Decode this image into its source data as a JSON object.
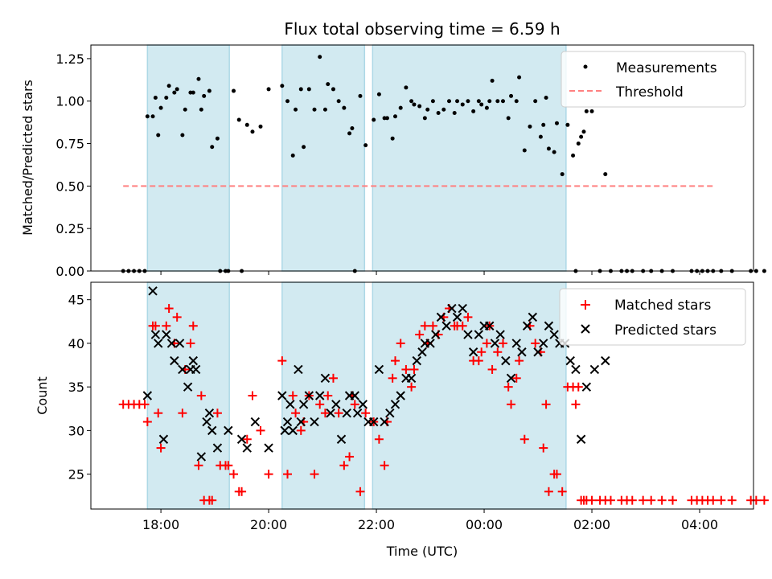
{
  "title": "Flux total observing time = 6.59 h",
  "colors": {
    "band": "#add8e6",
    "measurements": "#000000",
    "threshold": "#ff8080",
    "matched": "#ff0000",
    "predicted": "#000000"
  },
  "x_axis": {
    "label": "Time (UTC)",
    "unit": "hours since 00:00 of first night",
    "range": [
      16.7,
      29.0
    ],
    "ticks": [
      {
        "value": 18,
        "label": "18:00"
      },
      {
        "value": 20,
        "label": "20:00"
      },
      {
        "value": 22,
        "label": "22:00"
      },
      {
        "value": 24,
        "label": "00:00"
      },
      {
        "value": 26,
        "label": "02:00"
      },
      {
        "value": 28,
        "label": "04:00"
      }
    ]
  },
  "chart_data": [
    {
      "type": "scatter",
      "panel": "top",
      "ylabel": "Matched/Predicted stars",
      "ylim": [
        0,
        1.33
      ],
      "yticks": [
        "0.00",
        "0.25",
        "0.50",
        "0.75",
        "1.00",
        "1.25"
      ],
      "legend": {
        "position": "top-right",
        "entries": [
          "Measurements",
          "Threshold"
        ]
      },
      "observing_bands": [
        [
          17.75,
          19.27
        ],
        [
          20.25,
          21.78
        ],
        [
          21.93,
          25.52
        ]
      ],
      "threshold": {
        "value": 0.5,
        "x_range": [
          17.3,
          28.3
        ]
      },
      "series": [
        {
          "name": "Measurements",
          "x": [
            17.3,
            17.4,
            17.5,
            17.6,
            17.7,
            17.75,
            17.85,
            17.9,
            17.95,
            18.0,
            18.1,
            18.15,
            18.25,
            18.3,
            18.4,
            18.45,
            18.55,
            18.6,
            18.7,
            18.75,
            18.8,
            18.9,
            18.95,
            19.05,
            19.1,
            19.2,
            19.25,
            19.35,
            19.45,
            19.5,
            19.6,
            19.7,
            19.85,
            20.0,
            20.25,
            20.35,
            20.45,
            20.5,
            20.6,
            20.65,
            20.75,
            20.85,
            20.95,
            21.05,
            21.1,
            21.2,
            21.3,
            21.4,
            21.5,
            21.55,
            21.6,
            21.7,
            21.8,
            21.95,
            22.05,
            22.15,
            22.2,
            22.3,
            22.35,
            22.45,
            22.55,
            22.65,
            22.7,
            22.8,
            22.9,
            22.95,
            23.05,
            23.15,
            23.25,
            23.35,
            23.45,
            23.5,
            23.6,
            23.7,
            23.8,
            23.9,
            23.95,
            24.05,
            24.1,
            24.15,
            24.25,
            24.35,
            24.45,
            24.5,
            24.6,
            24.65,
            24.75,
            24.85,
            24.95,
            25.05,
            25.1,
            25.15,
            25.2,
            25.3,
            25.35,
            25.45,
            25.55,
            25.65,
            25.7,
            25.75,
            25.8,
            25.85,
            25.9,
            26.0,
            26.15,
            26.25,
            26.35,
            26.55,
            26.65,
            26.75,
            26.95,
            27.1,
            27.3,
            27.5,
            27.85,
            27.95,
            28.05,
            28.15,
            28.25,
            28.4,
            28.6,
            28.95,
            29.05,
            29.2
          ],
          "y": [
            0.0,
            0.0,
            0.0,
            0.0,
            0.0,
            0.91,
            0.91,
            1.02,
            0.8,
            0.96,
            1.02,
            1.09,
            1.05,
            1.07,
            0.8,
            0.95,
            1.05,
            1.05,
            1.13,
            0.95,
            1.03,
            1.06,
            0.73,
            0.78,
            0.0,
            0.0,
            0.0,
            1.06,
            0.89,
            0.0,
            0.86,
            0.82,
            0.85,
            1.07,
            1.09,
            1.0,
            0.68,
            0.95,
            1.07,
            0.73,
            1.07,
            0.95,
            1.26,
            0.95,
            1.1,
            1.07,
            1.0,
            0.96,
            0.81,
            0.84,
            0.0,
            1.03,
            0.74,
            0.89,
            1.04,
            0.9,
            0.9,
            0.78,
            0.91,
            0.96,
            1.08,
            1.0,
            0.98,
            0.97,
            0.9,
            0.95,
            1.0,
            0.93,
            0.95,
            1.0,
            0.93,
            1.0,
            0.98,
            1.0,
            0.94,
            1.0,
            0.98,
            0.96,
            1.0,
            1.12,
            1.0,
            1.0,
            0.9,
            1.03,
            1.0,
            1.14,
            0.71,
            0.85,
            1.0,
            0.79,
            0.86,
            1.02,
            0.72,
            0.7,
            0.87,
            0.57,
            0.86,
            0.68,
            0.0,
            0.75,
            0.79,
            0.82,
            0.94,
            0.94,
            0.0,
            0.57,
            0.0,
            0.0,
            0.0,
            0.0,
            0.0,
            0.0,
            0.0,
            0.0,
            0.0,
            0.0,
            0.0,
            0.0,
            0.0,
            0.0,
            0.0,
            0.0,
            0.0,
            0.0
          ]
        }
      ]
    },
    {
      "type": "scatter",
      "panel": "bottom",
      "ylabel": "Count",
      "ylim": [
        21,
        47
      ],
      "yticks": [
        "25",
        "30",
        "35",
        "40",
        "45"
      ],
      "legend": {
        "position": "top-right",
        "entries": [
          "Matched stars",
          "Predicted stars"
        ]
      },
      "observing_bands": [
        [
          17.75,
          19.27
        ],
        [
          20.25,
          21.78
        ],
        [
          21.93,
          25.52
        ]
      ],
      "series": [
        {
          "name": "Matched stars",
          "marker": "+",
          "x": [
            17.3,
            17.4,
            17.5,
            17.6,
            17.7,
            17.75,
            17.85,
            17.9,
            17.95,
            18.0,
            18.1,
            18.15,
            18.25,
            18.3,
            18.4,
            18.45,
            18.55,
            18.6,
            18.7,
            18.75,
            18.8,
            18.9,
            18.95,
            19.05,
            19.1,
            19.2,
            19.25,
            19.35,
            19.45,
            19.5,
            19.6,
            19.7,
            19.85,
            20.0,
            20.25,
            20.35,
            20.45,
            20.5,
            20.6,
            20.65,
            20.75,
            20.85,
            20.95,
            21.05,
            21.1,
            21.2,
            21.3,
            21.4,
            21.5,
            21.55,
            21.6,
            21.7,
            21.8,
            21.95,
            22.05,
            22.15,
            22.2,
            22.3,
            22.35,
            22.45,
            22.55,
            22.65,
            22.7,
            22.8,
            22.9,
            22.95,
            23.05,
            23.15,
            23.25,
            23.35,
            23.45,
            23.5,
            23.6,
            23.7,
            23.8,
            23.9,
            23.95,
            24.05,
            24.1,
            24.15,
            24.25,
            24.35,
            24.45,
            24.5,
            24.6,
            24.65,
            24.75,
            24.85,
            24.95,
            25.05,
            25.1,
            25.15,
            25.2,
            25.3,
            25.35,
            25.45,
            25.55,
            25.65,
            25.7,
            25.75,
            25.8,
            25.85,
            25.9,
            26.0,
            26.15,
            26.25,
            26.35,
            26.55,
            26.65,
            26.75,
            26.95,
            27.1,
            27.3,
            27.5,
            27.85,
            27.95,
            28.05,
            28.15,
            28.25,
            28.4,
            28.6,
            28.95,
            29.05,
            29.2
          ],
          "y": [
            33,
            33,
            33,
            33,
            33,
            31,
            42,
            42,
            32,
            28,
            42,
            44,
            40,
            43,
            32,
            37,
            40,
            42,
            26,
            34,
            22,
            22,
            22,
            32,
            26,
            26,
            26,
            25,
            23,
            23,
            29,
            34,
            30,
            25,
            38,
            25,
            34,
            32,
            30,
            31,
            34,
            25,
            33,
            32,
            34,
            36,
            32,
            26,
            27,
            34,
            33,
            23,
            32,
            31,
            29,
            26,
            31,
            36,
            38,
            40,
            37,
            35,
            37,
            41,
            42,
            40,
            42,
            41,
            43,
            44,
            42,
            42,
            42,
            43,
            38,
            38,
            39,
            40,
            42,
            37,
            39,
            40,
            35,
            33,
            36,
            38,
            29,
            42,
            40,
            39,
            28,
            33,
            23,
            25,
            25,
            23,
            35,
            35,
            33,
            35,
            22,
            22,
            22,
            22,
            22,
            22,
            22,
            22,
            22,
            22,
            22,
            22,
            22,
            22,
            22,
            22,
            22,
            22,
            22,
            22,
            22,
            22,
            22,
            22
          ]
        },
        {
          "name": "Predicted stars",
          "marker": "x",
          "x": [
            17.75,
            17.85,
            17.9,
            17.95,
            18.05,
            18.1,
            18.2,
            18.25,
            18.35,
            18.4,
            18.5,
            18.55,
            18.6,
            18.65,
            18.75,
            18.85,
            18.9,
            18.95,
            19.05,
            19.25,
            19.5,
            19.6,
            19.75,
            20.0,
            20.25,
            20.3,
            20.35,
            20.4,
            20.45,
            20.55,
            20.6,
            20.65,
            20.75,
            20.85,
            20.95,
            21.05,
            21.15,
            21.25,
            21.35,
            21.45,
            21.5,
            21.6,
            21.65,
            21.75,
            21.85,
            21.95,
            22.05,
            22.15,
            22.25,
            22.35,
            22.45,
            22.55,
            22.65,
            22.75,
            22.85,
            22.9,
            23.0,
            23.1,
            23.2,
            23.3,
            23.4,
            23.5,
            23.6,
            23.7,
            23.8,
            23.9,
            24.0,
            24.1,
            24.2,
            24.3,
            24.4,
            24.5,
            24.6,
            24.7,
            24.8,
            24.9,
            25.0,
            25.1,
            25.2,
            25.3,
            25.4,
            25.5,
            25.6,
            25.7,
            25.8,
            25.9,
            26.05,
            26.25
          ],
          "y": [
            34,
            46,
            41,
            40,
            29,
            41,
            40,
            38,
            40,
            37,
            35,
            37,
            38,
            37,
            27,
            31,
            32,
            30,
            28,
            30,
            29,
            28,
            31,
            28,
            34,
            30,
            31,
            33,
            30,
            37,
            31,
            33,
            34,
            31,
            34,
            36,
            32,
            33,
            29,
            32,
            34,
            34,
            32,
            33,
            31,
            31,
            37,
            31,
            32,
            33,
            34,
            36,
            36,
            38,
            39,
            40,
            40,
            41,
            43,
            42,
            44,
            43,
            44,
            41,
            39,
            41,
            42,
            42,
            40,
            41,
            38,
            36,
            40,
            39,
            42,
            43,
            39,
            40,
            42,
            41,
            40,
            40,
            38,
            37,
            29,
            35,
            37,
            38
          ]
        }
      ]
    }
  ]
}
